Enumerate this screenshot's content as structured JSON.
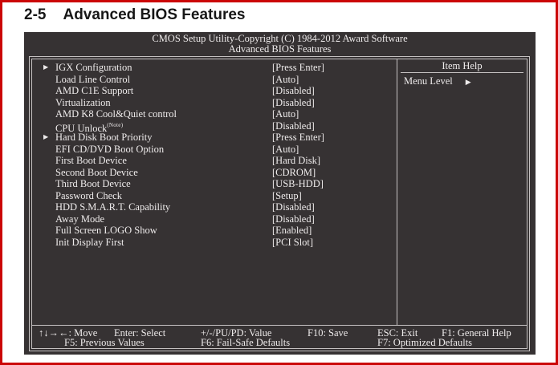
{
  "doc": {
    "section_number": "2-5",
    "section_title": "Advanced BIOS Features"
  },
  "bios": {
    "header_line1": "CMOS Setup Utility-Copyright (C) 1984-2012 Award Software",
    "header_line2": "Advanced BIOS Features",
    "submenu_arrow": "▶",
    "menu_items": [
      {
        "label": "IGX Configuration",
        "value": "[Press Enter]",
        "has_submenu": true
      },
      {
        "label": "Load Line Control",
        "value": "[Auto]"
      },
      {
        "label": "AMD C1E Support",
        "value": "[Disabled]"
      },
      {
        "label": "Virtualization",
        "value": "[Disabled]"
      },
      {
        "label": "AMD K8 Cool&Quiet control",
        "value": "[Auto]"
      },
      {
        "label": "CPU Unlock",
        "note": "(Note)",
        "value": "[Disabled]"
      },
      {
        "label": "Hard Disk Boot Priority",
        "value": "[Press Enter]",
        "has_submenu": true
      },
      {
        "label": "EFI CD/DVD Boot Option",
        "value": "[Auto]"
      },
      {
        "label": "First Boot Device",
        "value": "[Hard Disk]"
      },
      {
        "label": "Second Boot Device",
        "value": "[CDROM]"
      },
      {
        "label": "Third Boot Device",
        "value": "[USB-HDD]"
      },
      {
        "label": "Password Check",
        "value": "[Setup]"
      },
      {
        "label": "HDD S.M.A.R.T. Capability",
        "value": "[Disabled]"
      },
      {
        "label": "Away Mode",
        "value": "[Disabled]"
      },
      {
        "label": "Full Screen LOGO Show",
        "value": "[Enabled]"
      },
      {
        "label": "Init Display First",
        "value": "[PCI Slot]"
      }
    ],
    "help": {
      "title": "Item Help",
      "menu_level_label": "Menu Level",
      "menu_level_arrow": "▶"
    },
    "footer": {
      "row1": [
        "↑↓→←: Move",
        "Enter: Select",
        "+/-/PU/PD: Value",
        "F10: Save",
        "ESC: Exit",
        "F1: General Help"
      ],
      "row2": [
        "F5: Previous Values",
        "F6: Fail-Safe Defaults",
        "F7: Optimized Defaults"
      ]
    },
    "colors": {
      "screen_background": "#363233",
      "screen_text": "#eeebeb",
      "frame_line": "#c6c2c2",
      "page_border_red": "#cb0606"
    }
  }
}
